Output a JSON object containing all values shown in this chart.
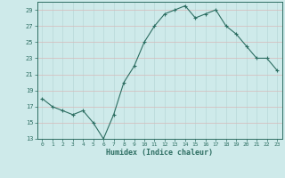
{
  "x": [
    0,
    1,
    2,
    3,
    4,
    5,
    6,
    7,
    8,
    9,
    10,
    11,
    12,
    13,
    14,
    15,
    16,
    17,
    18,
    19,
    20,
    21,
    22,
    23
  ],
  "y": [
    18,
    17,
    16.5,
    16,
    16.5,
    15,
    13,
    16,
    20,
    22,
    25,
    27,
    28.5,
    29,
    29.5,
    28,
    28.5,
    29,
    27,
    26,
    24.5,
    23,
    23,
    21.5
  ],
  "xlabel": "Humidex (Indice chaleur)",
  "ylim": [
    13,
    30
  ],
  "xlim": [
    -0.5,
    23.5
  ],
  "yticks": [
    13,
    15,
    17,
    19,
    21,
    23,
    25,
    27,
    29
  ],
  "xticks": [
    0,
    1,
    2,
    3,
    4,
    5,
    6,
    7,
    8,
    9,
    10,
    11,
    12,
    13,
    14,
    15,
    16,
    17,
    18,
    19,
    20,
    21,
    22,
    23
  ],
  "line_color": "#2d6e62",
  "marker_color": "#2d6e62",
  "bg_color": "#ceeaea",
  "vgrid_color": "#b8d8d8",
  "hgrid_color": "#d8b8b8",
  "tick_color": "#2d6e62",
  "xlabel_color": "#2d6e62"
}
